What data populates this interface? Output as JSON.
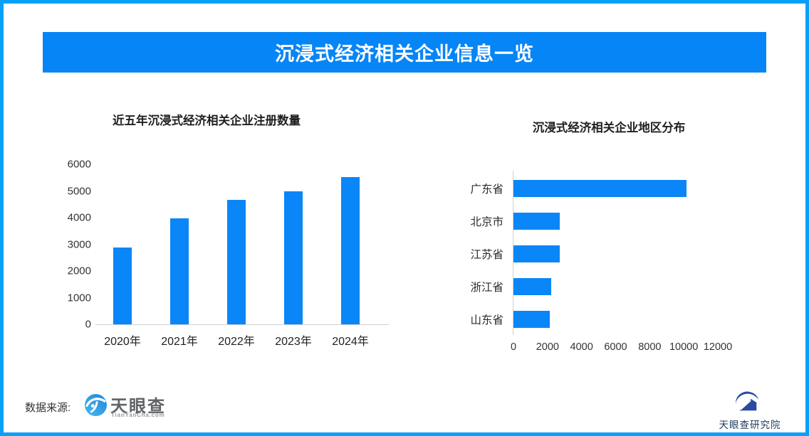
{
  "header": {
    "title": "沉浸式经济相关企业信息一览"
  },
  "chart_data": [
    {
      "type": "bar",
      "orientation": "vertical",
      "title": "近五年沉浸式经济相关企业注册数量",
      "categories": [
        "2020年",
        "2021年",
        "2022年",
        "2023年",
        "2024年"
      ],
      "values": [
        2880,
        3970,
        4660,
        5000,
        5510
      ],
      "xlabel": "",
      "ylabel": "",
      "ylim": [
        0,
        6000
      ],
      "yticks": [
        0,
        1000,
        2000,
        3000,
        4000,
        5000,
        6000
      ],
      "grid": false,
      "legend": false
    },
    {
      "type": "bar",
      "orientation": "horizontal",
      "title": "沉浸式经济相关企业地区分布",
      "categories": [
        "广东省",
        "北京市",
        "江苏省",
        "浙江省",
        "山东省"
      ],
      "values": [
        10150,
        2700,
        2700,
        2200,
        2150
      ],
      "xlabel": "",
      "ylabel": "",
      "xlim": [
        0,
        12000
      ],
      "xticks": [
        0,
        2000,
        4000,
        6000,
        8000,
        10000,
        12000
      ],
      "grid": false,
      "legend": false
    }
  ],
  "footer": {
    "source_label": "数据来源:",
    "brand_name": "天眼查",
    "brand_domain": "TianYanCha.com",
    "research_name": "天眼查研究院"
  },
  "colors": {
    "border_blue": "#09A0F8",
    "banner_blue": "#0685F6",
    "bar_blue": "#0A86F8",
    "axis_line": "#CFCFCF",
    "tyc_logo_blue": "#2D9BE4",
    "research_navy": "#2B4B9F"
  }
}
